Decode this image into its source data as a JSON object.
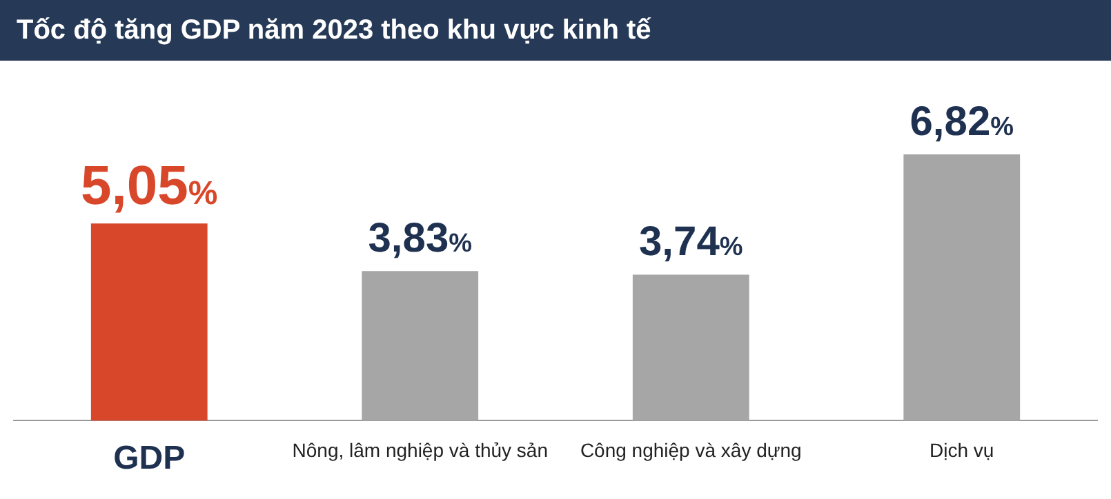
{
  "chart_data": {
    "type": "bar",
    "title": "Tốc độ tăng GDP năm 2023 theo khu vực kinh tế",
    "categories": [
      "GDP",
      "Nông, lâm nghiệp và thủy sản",
      "Công nghiệp và xây dựng",
      "Dịch vụ"
    ],
    "values": [
      5.05,
      3.83,
      3.74,
      6.82
    ],
    "colors": [
      "#d9472b",
      "#a6a6a6",
      "#a6a6a6",
      "#a6a6a6"
    ],
    "value_labels": [
      "5,05%",
      "3,83%",
      "3,74%",
      "6,82%"
    ],
    "grid": false,
    "legend": false
  }
}
